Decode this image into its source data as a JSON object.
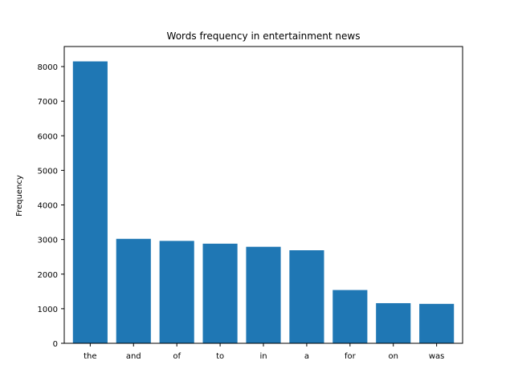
{
  "chart_data": {
    "type": "bar",
    "title": "Words frequency in entertainment news",
    "xlabel": "",
    "ylabel": "Frequency",
    "categories": [
      "the",
      "and",
      "of",
      "to",
      "in",
      "a",
      "for",
      "on",
      "was"
    ],
    "values": [
      8150,
      3020,
      2960,
      2880,
      2790,
      2690,
      1540,
      1160,
      1140
    ],
    "ylim": [
      0,
      8580
    ],
    "yticks": [
      0,
      1000,
      2000,
      3000,
      4000,
      5000,
      6000,
      7000,
      8000
    ],
    "grid": false,
    "bar_color": "#1f77b4"
  }
}
